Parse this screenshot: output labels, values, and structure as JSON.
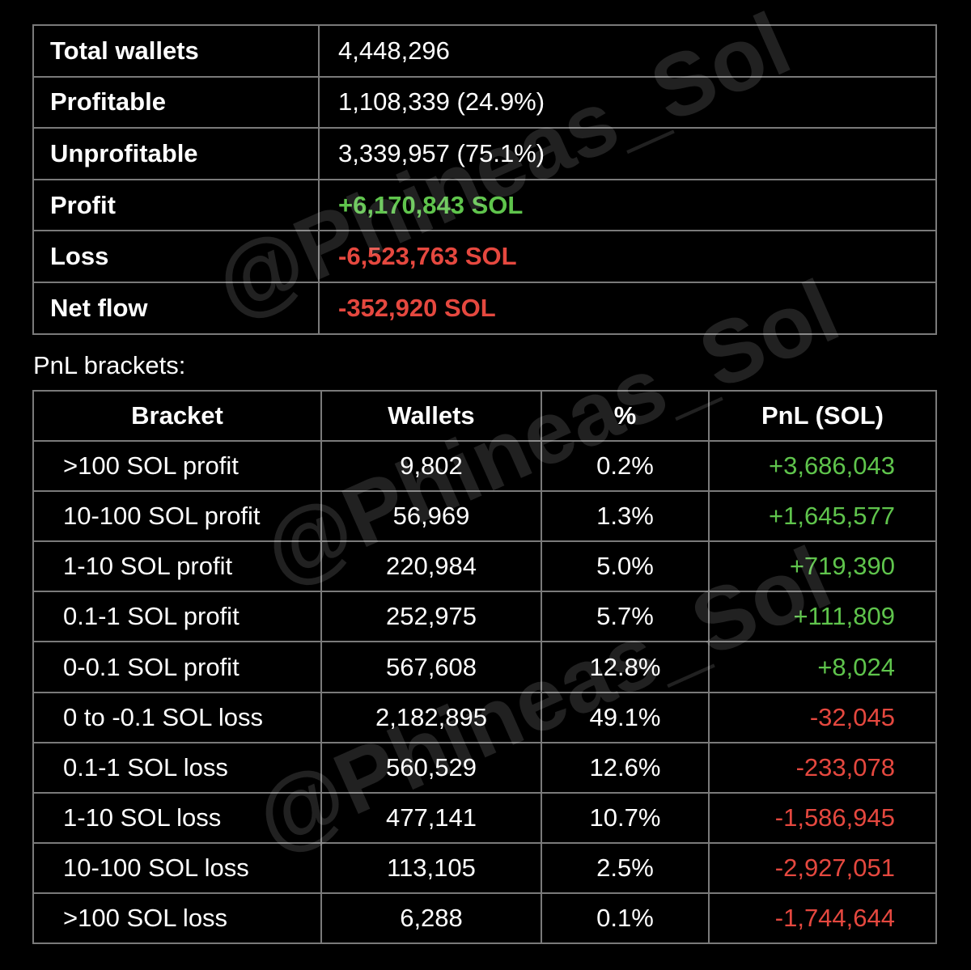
{
  "summary": {
    "rows": [
      [
        "Total wallets",
        "4,448,296"
      ],
      [
        "Profitable",
        "1,108,339 (24.9%)"
      ],
      [
        "Unprofitable",
        "3,339,957 (75.1%)"
      ],
      [
        "Profit",
        "+6,170,843 SOL"
      ],
      [
        "Loss",
        "-6,523,763 SOL"
      ],
      [
        "Net flow",
        "-352,920 SOL"
      ]
    ]
  },
  "brackets": {
    "title": "PnL brackets:",
    "header": [
      "Bracket",
      "Wallets",
      "%",
      "PnL (SOL)"
    ],
    "rows": [
      [
        ">100 SOL profit",
        "9,802",
        "0.2%",
        "+3,686,043"
      ],
      [
        "10-100 SOL profit",
        "56,969",
        "1.3%",
        "+1,645,577"
      ],
      [
        "1-10 SOL profit",
        "220,984",
        "5.0%",
        "+719,390"
      ],
      [
        "0.1-1 SOL profit",
        "252,975",
        "5.7%",
        "+111,809"
      ],
      [
        "0-0.1 SOL profit",
        "567,608",
        "12.8%",
        "+8,024"
      ],
      [
        "0 to -0.1 SOL loss",
        "2,182,895",
        "49.1%",
        "-32,045"
      ],
      [
        "0.1-1 SOL loss",
        "560,529",
        "12.6%",
        "-233,078"
      ],
      [
        "1-10 SOL loss",
        "477,141",
        "10.7%",
        "-1,586,945"
      ],
      [
        "10-100 SOL loss",
        "113,105",
        "2.5%",
        "-2,927,051"
      ],
      [
        ">100 SOL loss",
        "6,288",
        "0.1%",
        "-1,744,644"
      ]
    ]
  },
  "watermark": "@Phineas_Sol",
  "positive_color": "#5fc44c",
  "negative_color": "#e5483f"
}
